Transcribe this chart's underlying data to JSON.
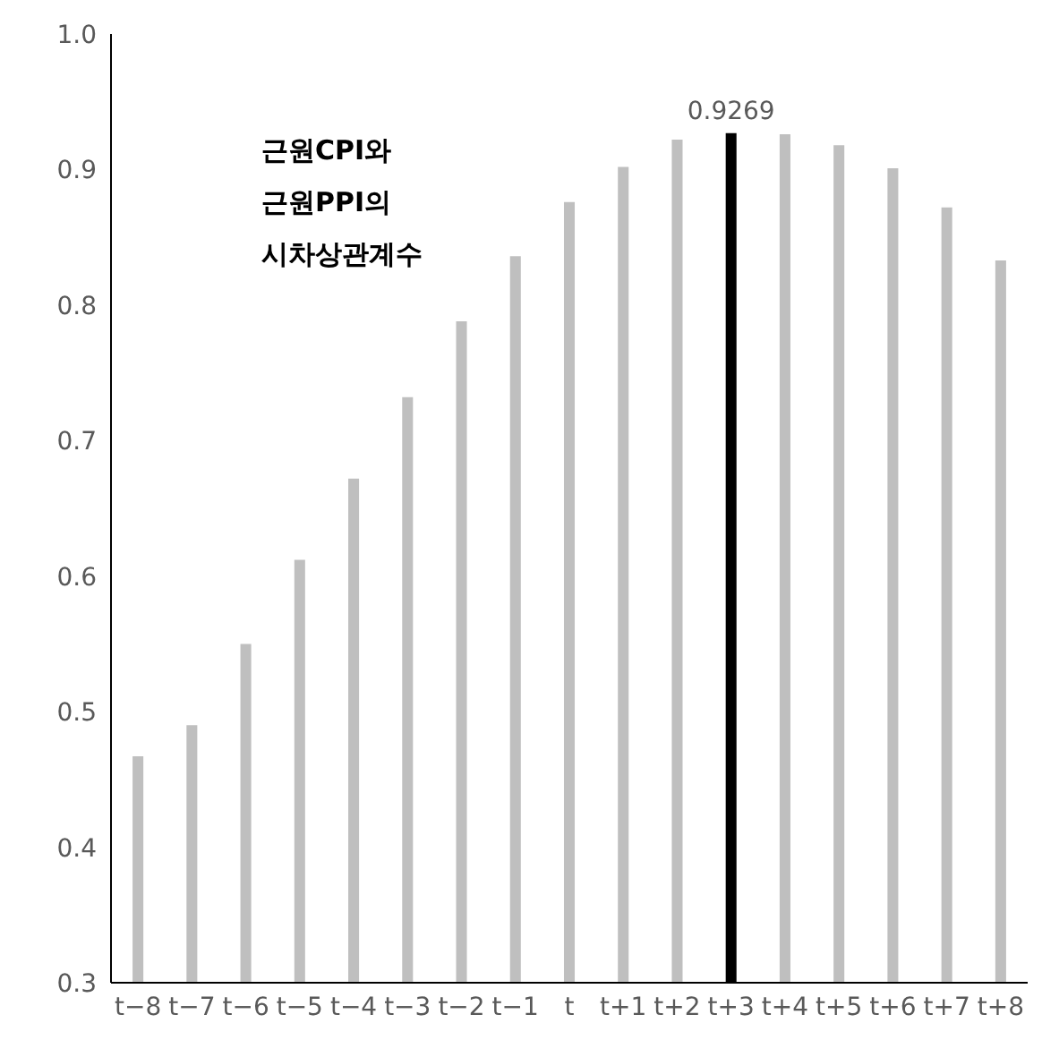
{
  "chart_data": {
    "type": "bar",
    "title": "근원CPI와 근원PPI의 시차상관계수",
    "categories": [
      "t−8",
      "t−7",
      "t−6",
      "t−5",
      "t−4",
      "t−3",
      "t−2",
      "t−1",
      "t",
      "t+1",
      "t+2",
      "t+3",
      "t+4",
      "t+5",
      "t+6",
      "t+7",
      "t+8"
    ],
    "values": [
      0.467,
      0.49,
      0.55,
      0.612,
      0.672,
      0.732,
      0.788,
      0.836,
      0.876,
      0.902,
      0.922,
      0.9269,
      0.926,
      0.918,
      0.901,
      0.872,
      0.833
    ],
    "colors": [
      "#bfbfbf",
      "#bfbfbf",
      "#bfbfbf",
      "#bfbfbf",
      "#bfbfbf",
      "#bfbfbf",
      "#bfbfbf",
      "#bfbfbf",
      "#bfbfbf",
      "#bfbfbf",
      "#bfbfbf",
      "#000000",
      "#bfbfbf",
      "#bfbfbf",
      "#bfbfbf",
      "#bfbfbf",
      "#bfbfbf"
    ],
    "value_labels": [
      null,
      null,
      null,
      null,
      null,
      null,
      null,
      null,
      null,
      null,
      null,
      "0.9269",
      null,
      null,
      null,
      null,
      null
    ],
    "ylim": [
      0.3,
      1.0
    ],
    "yticks": [
      {
        "value": 0.3,
        "label": "0.3"
      },
      {
        "value": 0.4,
        "label": "0.4"
      },
      {
        "value": 0.5,
        "label": "0.5"
      },
      {
        "value": 0.6,
        "label": "0.6"
      },
      {
        "value": 0.7,
        "label": "0.7"
      },
      {
        "value": 0.8,
        "label": "0.8"
      },
      {
        "value": 0.9,
        "label": "0.9"
      },
      {
        "value": 1.0,
        "label": "1.0"
      }
    ],
    "grid": false,
    "legend": false
  }
}
